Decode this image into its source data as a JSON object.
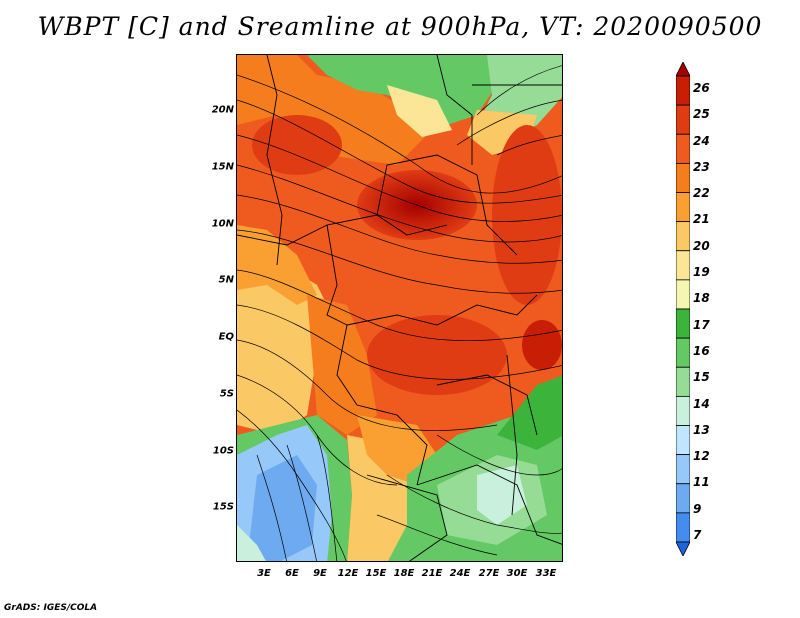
{
  "title": "WBPT [C] and Sreamline at 900hPa, VT: 2020090500",
  "footer": "GrADS: IGES/COLA",
  "lat_labels": [
    "20N",
    "15N",
    "10N",
    "5N",
    "EQ",
    "5S",
    "10S",
    "15S"
  ],
  "lon_labels": [
    "3E",
    "6E",
    "9E",
    "12E",
    "15E",
    "18E",
    "21E",
    "24E",
    "27E",
    "30E",
    "33E"
  ],
  "colorbar": {
    "levels": [
      "26",
      "25",
      "24",
      "23",
      "22",
      "21",
      "20",
      "19",
      "18",
      "17",
      "16",
      "15",
      "14",
      "13",
      "12",
      "11",
      "9",
      "7"
    ],
    "colors": [
      "#a50000",
      "#c81e05",
      "#e03c14",
      "#ef5a1e",
      "#f57d1e",
      "#faa032",
      "#fac864",
      "#fae696",
      "#f5f5b4",
      "#3cb43c",
      "#64c864",
      "#96dc96",
      "#c8f0dc",
      "#bee6ff",
      "#96c8fa",
      "#6eaaf0",
      "#468cf0",
      "#1e64dc"
    ]
  },
  "map": {
    "lat_range": [
      -20,
      25
    ],
    "lon_range": [
      0,
      35
    ],
    "variable": "WBPT",
    "units": "C",
    "level": "900hPa"
  }
}
